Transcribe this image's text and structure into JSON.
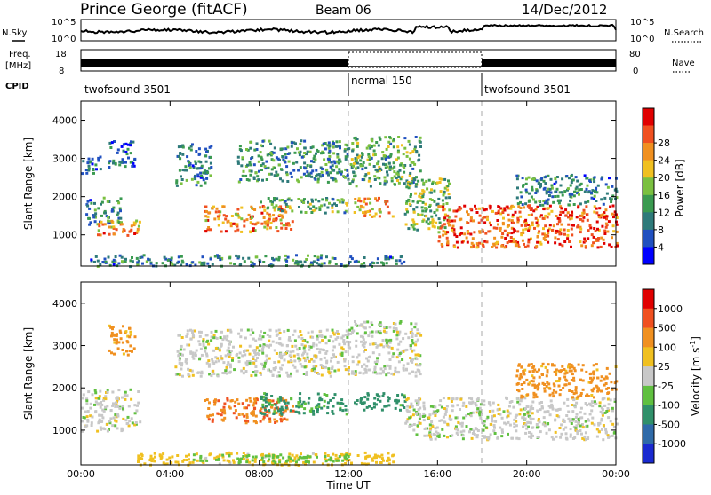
{
  "header": {
    "station": "Prince George (fitACF)",
    "beam": "Beam 06",
    "date": "14/Dec/2012"
  },
  "noise_panel": {
    "left_label": "N.Sky",
    "left_ticks": [
      "10^5",
      "10^0"
    ],
    "right_label": "N.Search",
    "right_ticks": [
      "10^5",
      "10^0"
    ]
  },
  "freq_panel": {
    "left_label_1": "Freq.",
    "left_label_2": "[MHz]",
    "left_ticks": [
      "18",
      "8"
    ],
    "right_label": "Nave",
    "right_ticks": [
      "80",
      "0"
    ]
  },
  "cpid": {
    "label": "CPID",
    "segments": [
      {
        "name": "twofsound 3501",
        "start_hour": 0
      },
      {
        "name": "normal 150",
        "start_hour": 12
      },
      {
        "name": "twofsound 3501",
        "start_hour": 18
      }
    ]
  },
  "power_panel": {
    "ylabel": "Slant Range [km]",
    "yticks": [
      "1000",
      "2000",
      "3000",
      "4000"
    ],
    "colorbar_label": "Power [dB]",
    "colorbar_ticks": [
      "4",
      "8",
      "12",
      "16",
      "20",
      "24",
      "28"
    ],
    "colorbar_colors": [
      "#0000ff",
      "#2050c0",
      "#2e7a7a",
      "#3a9a50",
      "#7ac040",
      "#f0c020",
      "#f09020",
      "#f05020",
      "#e00000"
    ]
  },
  "velocity_panel": {
    "ylabel": "Slant Range [km]",
    "yticks": [
      "1000",
      "2000",
      "3000",
      "4000"
    ],
    "colorbar_label": "Velocity [m s^-1]",
    "colorbar_ticks": [
      "1000",
      "500",
      "100",
      "25",
      "-25",
      "-100",
      "-500",
      "-1000"
    ],
    "colorbar_colors": [
      "#1a2ad0",
      "#2f6aa8",
      "#30906a",
      "#60c040",
      "#c8c8c8",
      "#f0c020",
      "#f09020",
      "#f05020",
      "#e00000"
    ]
  },
  "xaxis": {
    "label": "Time UT",
    "ticks": [
      "00:00",
      "04:00",
      "08:00",
      "12:00",
      "16:00",
      "20:00",
      "00:00"
    ]
  },
  "chart_data": {
    "type": "heatmap",
    "title": "Prince George (fitACF) Beam 06 14/Dec/2012",
    "xlabel": "Time UT",
    "xlim_hours": [
      0,
      24
    ],
    "ylim_km": [
      180,
      4500
    ],
    "series": [
      {
        "name": "Power [dB]",
        "clim": [
          0,
          30
        ],
        "patches": [
          {
            "t0": 0.0,
            "t1": 0.9,
            "r0": 2600,
            "r1": 3100,
            "value": 6
          },
          {
            "t0": 0.2,
            "t1": 1.8,
            "r0": 1300,
            "r1": 2000,
            "value": 9
          },
          {
            "t0": 0.5,
            "t1": 2.6,
            "r0": 1000,
            "r1": 1400,
            "value": 21
          },
          {
            "t0": 1.2,
            "t1": 2.4,
            "r0": 2800,
            "r1": 3500,
            "value": 7
          },
          {
            "t0": 4.2,
            "t1": 5.8,
            "r0": 2300,
            "r1": 3400,
            "value": 9
          },
          {
            "t0": 5.5,
            "t1": 9.5,
            "r0": 1100,
            "r1": 1800,
            "value": 22
          },
          {
            "t0": 7.0,
            "t1": 12.0,
            "r0": 2400,
            "r1": 3500,
            "value": 10
          },
          {
            "t0": 8.0,
            "t1": 12.0,
            "r0": 1600,
            "r1": 2000,
            "value": 12
          },
          {
            "t0": 12.0,
            "t1": 15.2,
            "r0": 2300,
            "r1": 3600,
            "value": 12
          },
          {
            "t0": 12.2,
            "t1": 14.0,
            "r0": 1500,
            "r1": 2000,
            "value": 20
          },
          {
            "t0": 14.5,
            "t1": 16.5,
            "r0": 1100,
            "r1": 2500,
            "value": 14
          },
          {
            "t0": 16.0,
            "t1": 24.0,
            "r0": 700,
            "r1": 1800,
            "value": 24
          },
          {
            "t0": 19.5,
            "t1": 24.0,
            "r0": 1800,
            "r1": 2600,
            "value": 9
          },
          {
            "t0": 0.3,
            "t1": 14.5,
            "r0": 200,
            "r1": 500,
            "value": 9
          }
        ]
      },
      {
        "name": "Velocity [m s^-1]",
        "clim": [
          -1000,
          1000
        ],
        "patches": [
          {
            "t0": 0.0,
            "t1": 2.6,
            "r0": 1000,
            "r1": 2000,
            "value": 0
          },
          {
            "t0": 1.2,
            "t1": 2.4,
            "r0": 2800,
            "r1": 3500,
            "value": -150
          },
          {
            "t0": 4.2,
            "t1": 12.0,
            "r0": 2300,
            "r1": 3400,
            "value": 0
          },
          {
            "t0": 5.5,
            "t1": 9.5,
            "r0": 1200,
            "r1": 1800,
            "value": -400
          },
          {
            "t0": 8.0,
            "t1": 12.0,
            "r0": 1400,
            "r1": 1900,
            "value": 150
          },
          {
            "t0": 12.0,
            "t1": 15.2,
            "r0": 2300,
            "r1": 3600,
            "value": 0
          },
          {
            "t0": 12.2,
            "t1": 14.5,
            "r0": 1500,
            "r1": 1900,
            "value": 200
          },
          {
            "t0": 14.5,
            "t1": 24.0,
            "r0": 800,
            "r1": 1800,
            "value": 0
          },
          {
            "t0": 19.5,
            "t1": 24.0,
            "r0": 1800,
            "r1": 2600,
            "value": -200
          },
          {
            "t0": 2.5,
            "t1": 14.0,
            "r0": 200,
            "r1": 500,
            "value": -60
          },
          {
            "t0": 5.0,
            "t1": 12.0,
            "r0": 250,
            "r1": 450,
            "value": 60
          }
        ]
      }
    ]
  }
}
